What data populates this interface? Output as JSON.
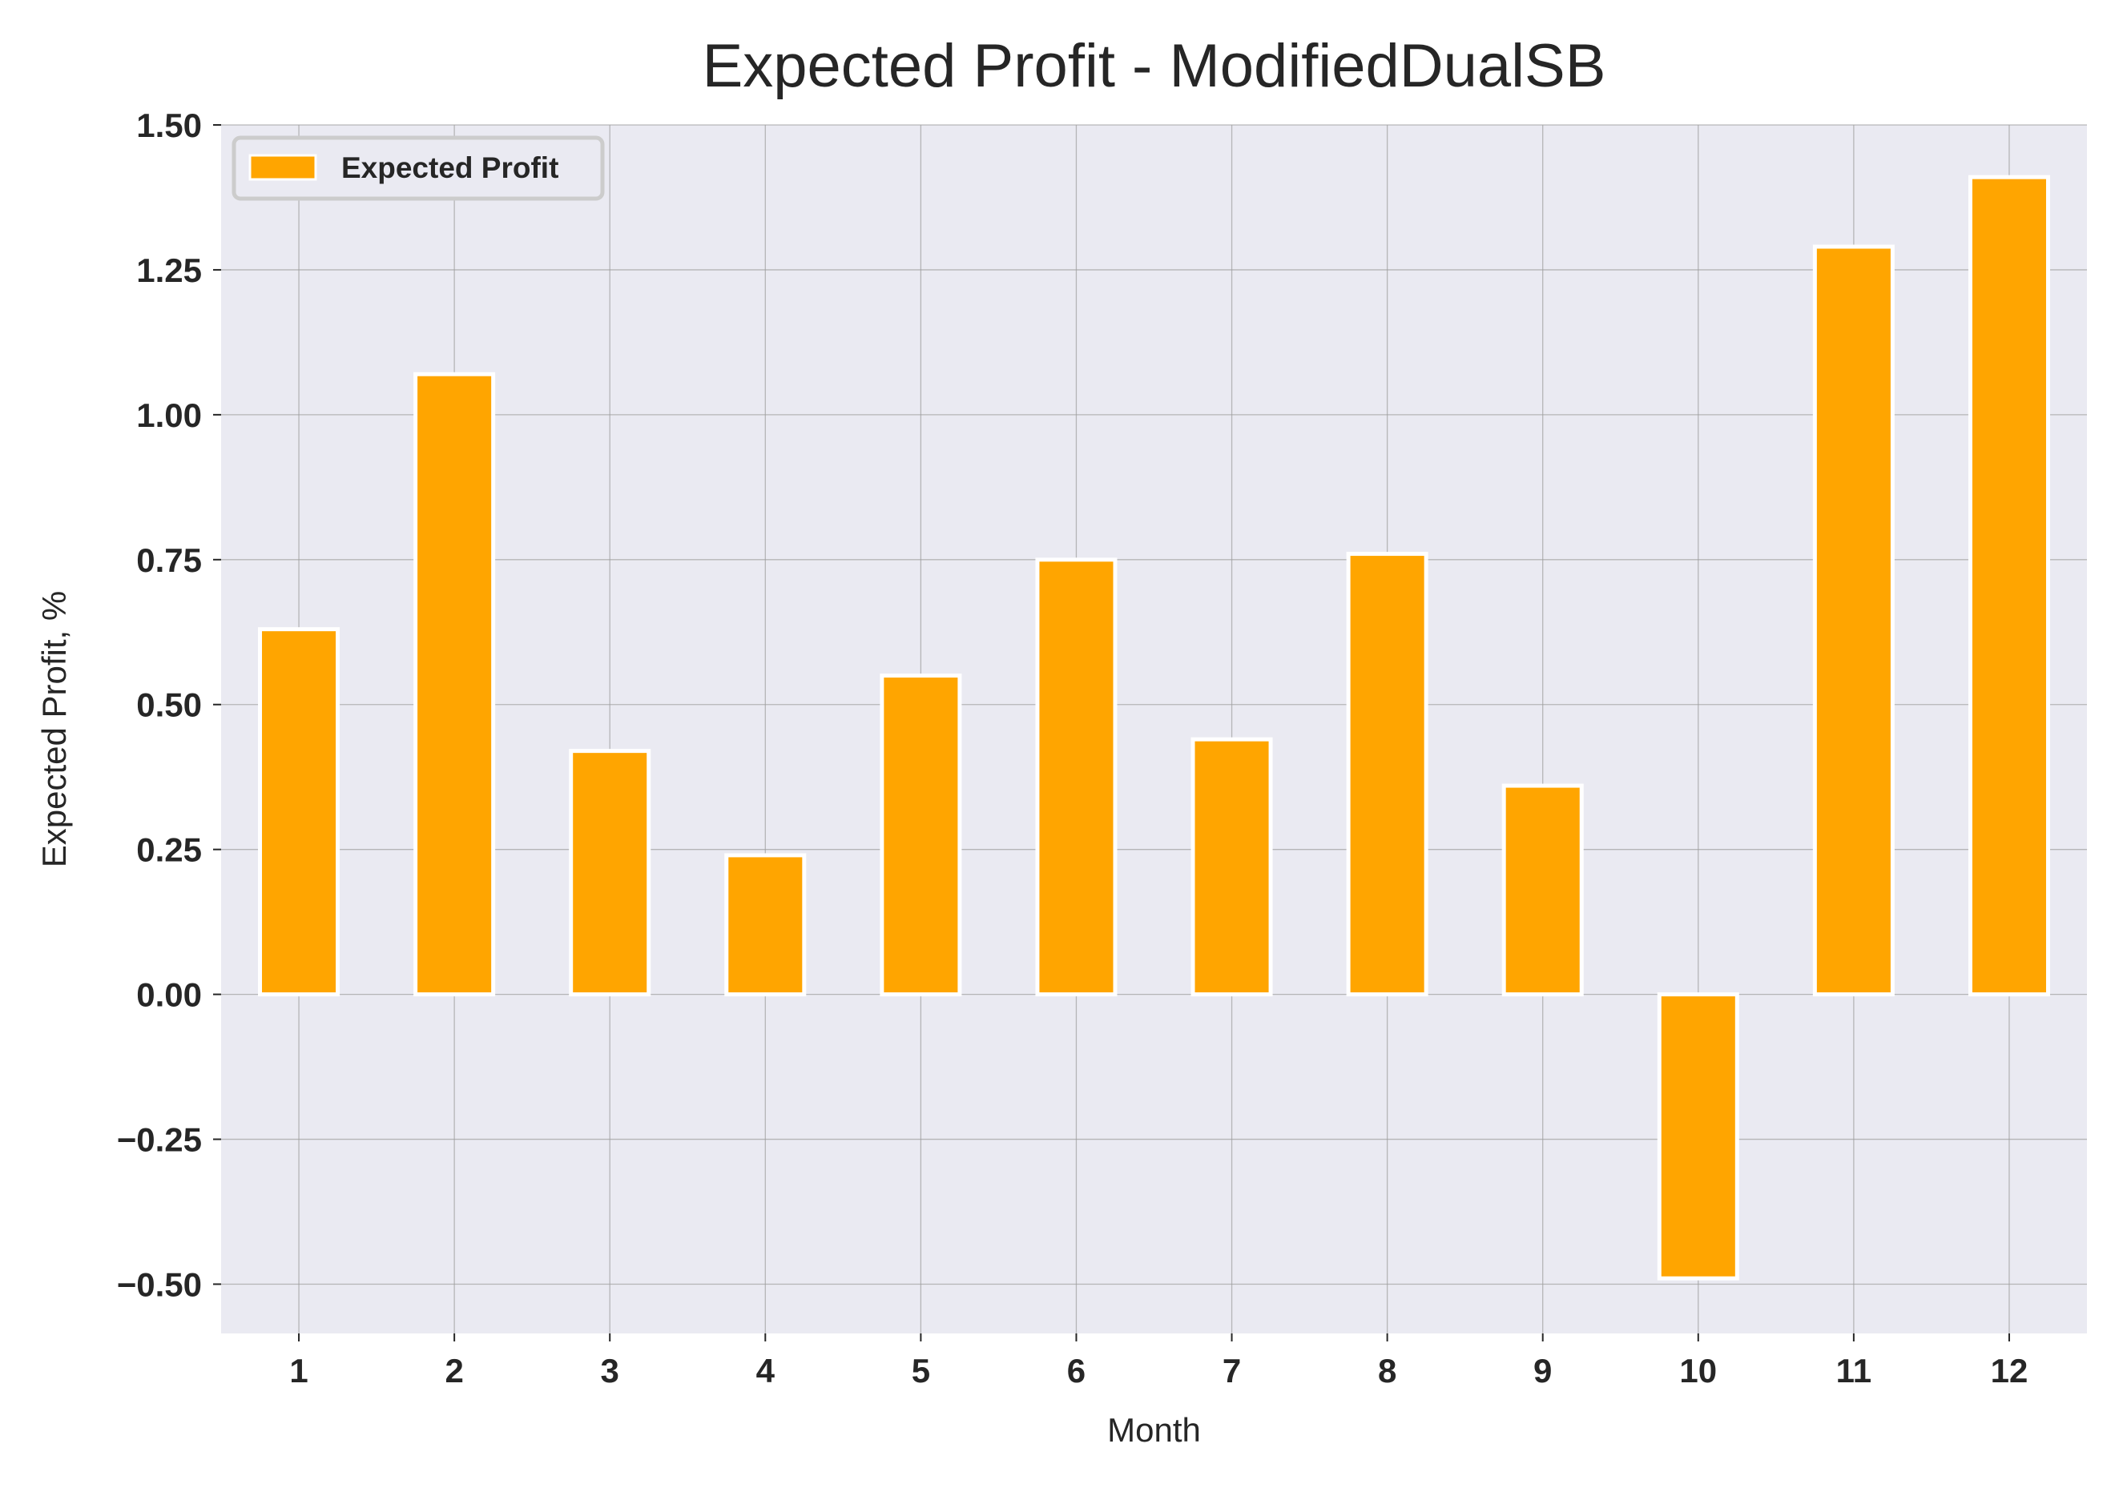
{
  "colors": {
    "bar": "#FFA500",
    "bar_edge": "#ffffff",
    "plot_background": "#EAEAF2",
    "grid": "#9e9e9e",
    "text": "#262626"
  },
  "chart_data": {
    "type": "bar",
    "title": "Expected Profit - ModifiedDualSB",
    "xlabel": "Month",
    "ylabel": "Expected Profit, %",
    "categories": [
      "1",
      "2",
      "3",
      "4",
      "5",
      "6",
      "7",
      "8",
      "9",
      "10",
      "11",
      "12"
    ],
    "series": [
      {
        "name": "Expected Profit",
        "values": [
          0.63,
          1.07,
          0.42,
          0.24,
          0.55,
          0.75,
          0.44,
          0.76,
          0.36,
          -0.49,
          1.29,
          1.41
        ]
      }
    ],
    "ylim": [
      -0.585,
      1.5
    ],
    "yticks": [
      -0.5,
      -0.25,
      0.0,
      0.25,
      0.5,
      0.75,
      1.0,
      1.25,
      1.5
    ],
    "ytick_labels": [
      "−0.50",
      "−0.25",
      "0.00",
      "0.25",
      "0.50",
      "0.75",
      "1.00",
      "1.25",
      "1.50"
    ],
    "grid": true,
    "legend_position": "top-left"
  }
}
